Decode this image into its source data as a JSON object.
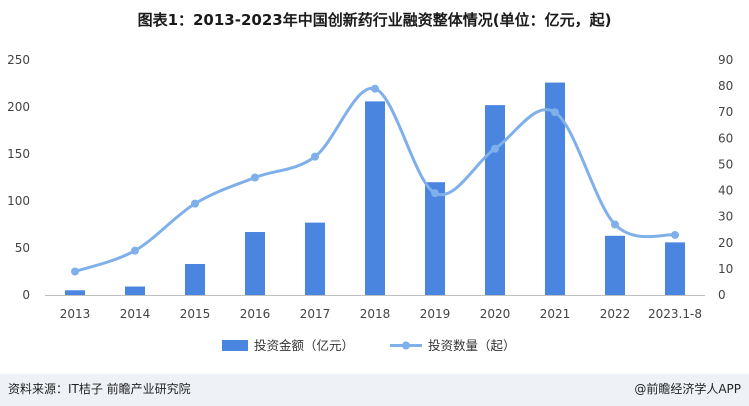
{
  "page": {
    "title": "图表1：2013-2023年中国创新药行业融资整体情况(单位：亿元，起)",
    "source": "资料来源：IT桔子 前瞻产业研究院",
    "app_credit": "@前瞻经济学人APP"
  },
  "colors": {
    "bar": "#4a86e0",
    "line": "#7fb0ea",
    "axis": "#bfbfbf",
    "footer_bg": "#eef2f7"
  },
  "chart_data": {
    "type": "bar",
    "title": "图表1：2013-2023年中国创新药行业融资整体情况(单位：亿元，起)",
    "categories": [
      "2013",
      "2014",
      "2015",
      "2016",
      "2017",
      "2018",
      "2019",
      "2020",
      "2021",
      "2022",
      "2023.1-8"
    ],
    "series": [
      {
        "name": "投资金额（亿元）",
        "type": "bar",
        "axis": "left",
        "values": [
          5,
          9,
          33,
          67,
          77,
          206,
          120,
          202,
          226,
          63,
          56
        ]
      },
      {
        "name": "投资数量（起）",
        "type": "line",
        "axis": "right",
        "smooth": true,
        "values": [
          9,
          17,
          35,
          45,
          53,
          79,
          39,
          56,
          70,
          27,
          23
        ]
      }
    ],
    "y_left": {
      "lim": [
        0,
        250
      ],
      "ticks": [
        0,
        50,
        100,
        150,
        200,
        250
      ]
    },
    "y_right": {
      "lim": [
        0,
        90
      ],
      "ticks": [
        0,
        10,
        20,
        30,
        40,
        50,
        60,
        70,
        80,
        90
      ]
    },
    "grid": false,
    "legend": "bottom-center"
  }
}
